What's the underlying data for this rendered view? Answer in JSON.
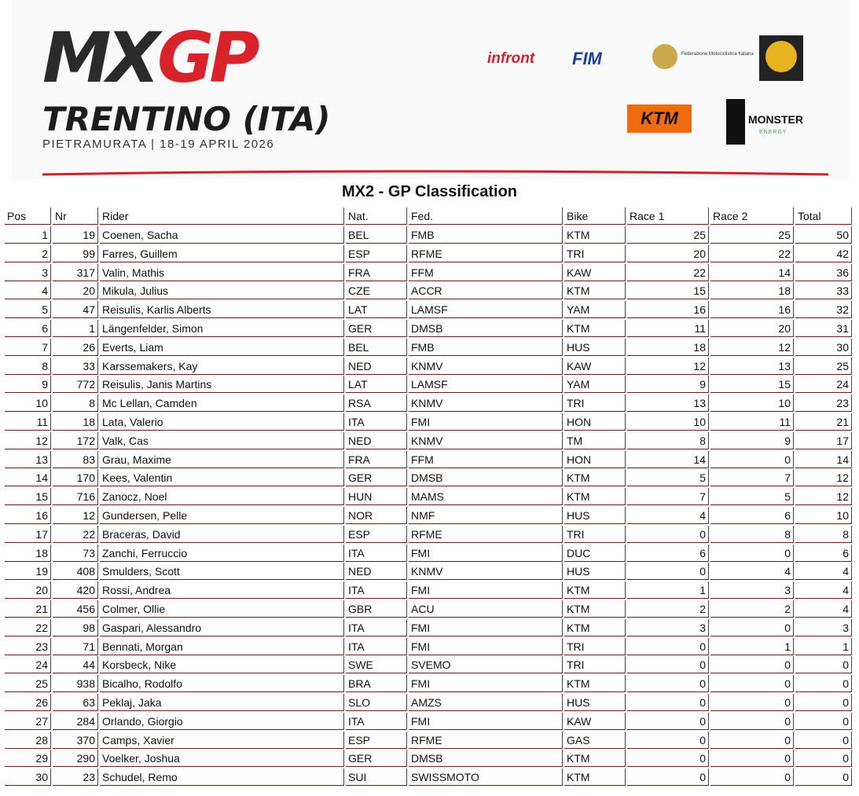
{
  "header": {
    "logo_mx": "MX",
    "logo_gp": "GP",
    "event": "TRENTINO (ITA)",
    "venue": "PIETRAMURATA | 18-19 APRIL 2026",
    "sponsors": [
      "infront",
      "FIM",
      "Federazione Motociclistica Italiana",
      "KTM",
      "MONSTER",
      "ENERGY"
    ]
  },
  "title": "MX2 - GP Classification",
  "table": {
    "columns": [
      "Pos",
      "Nr",
      "Rider",
      "Nat.",
      "Fed.",
      "Bike",
      "Race 1",
      "Race 2",
      "Total"
    ],
    "rows": [
      [
        1,
        19,
        "Coenen, Sacha",
        "BEL",
        "FMB",
        "KTM",
        25,
        25,
        50
      ],
      [
        2,
        99,
        "Farres, Guillem",
        "ESP",
        "RFME",
        "TRI",
        20,
        22,
        42
      ],
      [
        3,
        317,
        "Valin, Mathis",
        "FRA",
        "FFM",
        "KAW",
        22,
        14,
        36
      ],
      [
        4,
        20,
        "Mikula, Julius",
        "CZE",
        "ACCR",
        "KTM",
        15,
        18,
        33
      ],
      [
        5,
        47,
        "Reisulis, Karlis Alberts",
        "LAT",
        "LAMSF",
        "YAM",
        16,
        16,
        32
      ],
      [
        6,
        1,
        "Längenfelder, Simon",
        "GER",
        "DMSB",
        "KTM",
        11,
        20,
        31
      ],
      [
        7,
        26,
        "Everts, Liam",
        "BEL",
        "FMB",
        "HUS",
        18,
        12,
        30
      ],
      [
        8,
        33,
        "Karssemakers, Kay",
        "NED",
        "KNMV",
        "KAW",
        12,
        13,
        25
      ],
      [
        9,
        772,
        "Reisulis, Janis Martins",
        "LAT",
        "LAMSF",
        "YAM",
        9,
        15,
        24
      ],
      [
        10,
        8,
        "Mc Lellan, Camden",
        "RSA",
        "KNMV",
        "TRI",
        13,
        10,
        23
      ],
      [
        11,
        18,
        "Lata, Valerio",
        "ITA",
        "FMI",
        "HON",
        10,
        11,
        21
      ],
      [
        12,
        172,
        "Valk, Cas",
        "NED",
        "KNMV",
        "TM",
        8,
        9,
        17
      ],
      [
        13,
        83,
        "Grau, Maxime",
        "FRA",
        "FFM",
        "HON",
        14,
        0,
        14
      ],
      [
        14,
        170,
        "Kees, Valentin",
        "GER",
        "DMSB",
        "KTM",
        5,
        7,
        12
      ],
      [
        15,
        716,
        "Zanocz, Noel",
        "HUN",
        "MAMS",
        "KTM",
        7,
        5,
        12
      ],
      [
        16,
        12,
        "Gundersen, Pelle",
        "NOR",
        "NMF",
        "HUS",
        4,
        6,
        10
      ],
      [
        17,
        22,
        "Braceras, David",
        "ESP",
        "RFME",
        "TRI",
        0,
        8,
        8
      ],
      [
        18,
        73,
        "Zanchi, Ferruccio",
        "ITA",
        "FMI",
        "DUC",
        6,
        0,
        6
      ],
      [
        19,
        408,
        "Smulders, Scott",
        "NED",
        "KNMV",
        "HUS",
        0,
        4,
        4
      ],
      [
        20,
        420,
        "Rossi, Andrea",
        "ITA",
        "FMI",
        "KTM",
        1,
        3,
        4
      ],
      [
        21,
        456,
        "Colmer, Ollie",
        "GBR",
        "ACU",
        "KTM",
        2,
        2,
        4
      ],
      [
        22,
        98,
        "Gaspari, Alessandro",
        "ITA",
        "FMI",
        "KTM",
        3,
        0,
        3
      ],
      [
        23,
        71,
        "Bennati, Morgan",
        "ITA",
        "FMI",
        "TRI",
        0,
        1,
        1
      ],
      [
        24,
        44,
        "Korsbeck, Nike",
        "SWE",
        "SVEMO",
        "TRI",
        0,
        0,
        0
      ],
      [
        25,
        938,
        "Bicalho, Rodolfo",
        "BRA",
        "FMI",
        "KTM",
        0,
        0,
        0
      ],
      [
        26,
        63,
        "Peklaj, Jaka",
        "SLO",
        "AMZS",
        "HUS",
        0,
        0,
        0
      ],
      [
        27,
        284,
        "Orlando, Giorgio",
        "ITA",
        "FMI",
        "KAW",
        0,
        0,
        0
      ],
      [
        28,
        370,
        "Camps, Xavier",
        "ESP",
        "RFME",
        "GAS",
        0,
        0,
        0
      ],
      [
        29,
        290,
        "Voelker, Joshua",
        "GER",
        "DMSB",
        "KTM",
        0,
        0,
        0
      ],
      [
        30,
        23,
        "Schudel, Remo",
        "SUI",
        "SWISSMOTO",
        "KTM",
        0,
        0,
        0
      ]
    ]
  }
}
